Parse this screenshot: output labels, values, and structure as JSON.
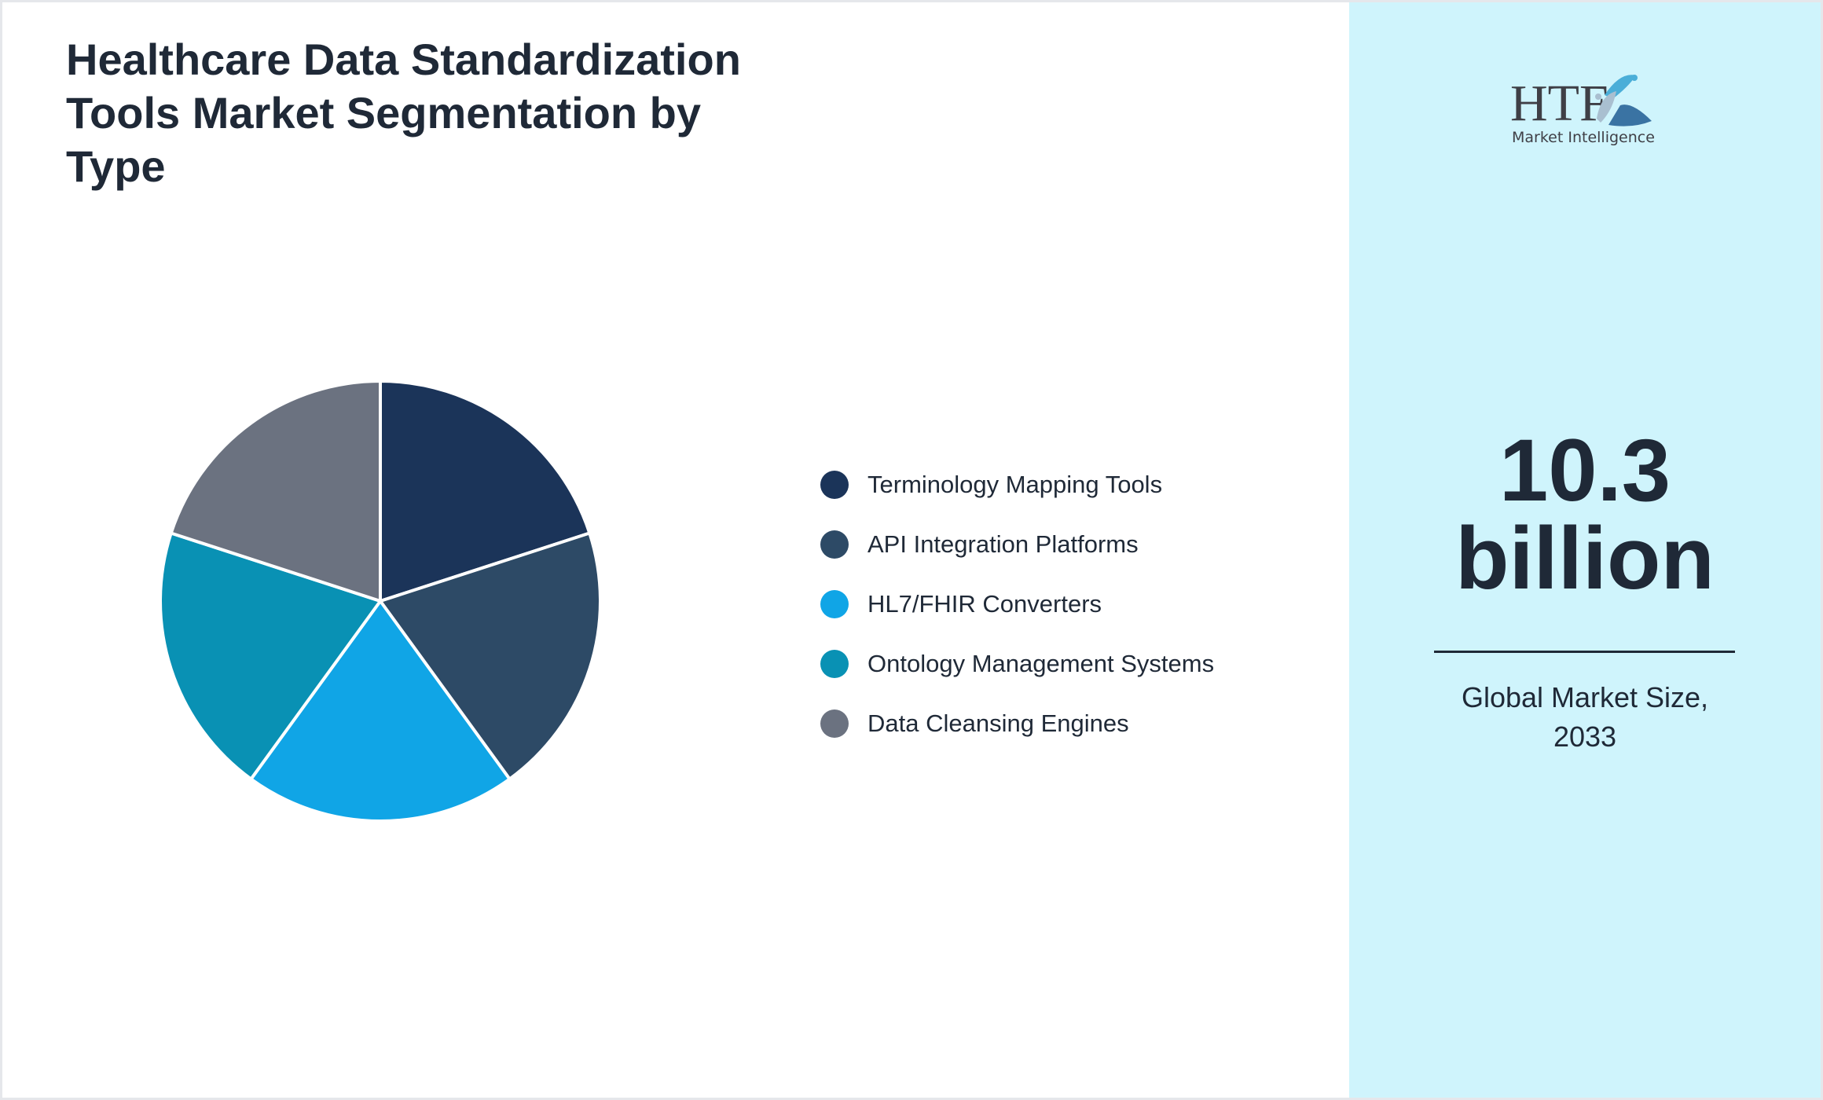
{
  "chart_data": {
    "type": "pie",
    "title": "Healthcare Data Standardization Tools Market Segmentation by Type",
    "categories": [
      "Terminology Mapping Tools",
      "API Integration Platforms",
      "HL7/FHIR Converters",
      "Ontology Management Systems",
      "Data Cleansing Engines"
    ],
    "values": [
      20,
      20,
      20,
      20,
      20
    ],
    "colors": [
      "#1b3459",
      "#2d4a66",
      "#10a5e6",
      "#0991b4",
      "#6b7280"
    ],
    "legend_position": "right"
  },
  "panel": {
    "value": "10.3",
    "unit": "billion",
    "caption_line1": "Global Market Size,",
    "caption_line2": "2033"
  },
  "logo": {
    "brand": "HTF",
    "tagline": "Market Intelligence"
  }
}
